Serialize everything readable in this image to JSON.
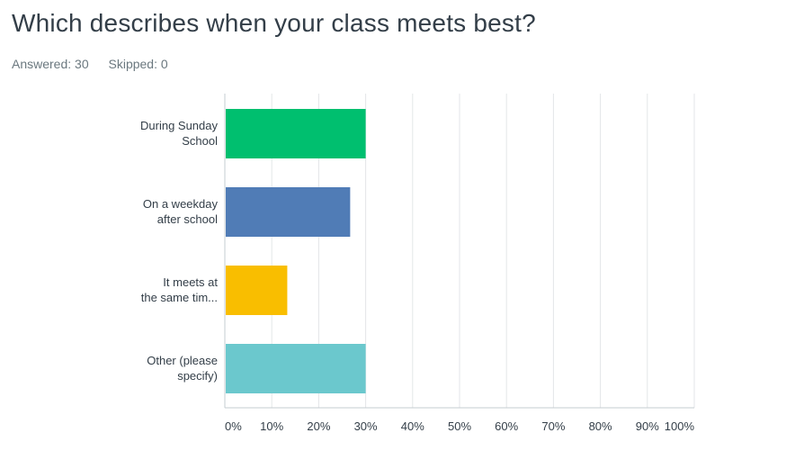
{
  "question": {
    "title": "Which describes when your class meets best?",
    "answered": "Answered: 30",
    "skipped": "Skipped: 0"
  },
  "chart_data": {
    "type": "bar",
    "orientation": "horizontal",
    "categories": [
      [
        "During Sunday",
        "School"
      ],
      [
        "On a weekday",
        "after school"
      ],
      [
        "It meets at",
        "the same tim..."
      ],
      [
        "Other (please",
        "specify)"
      ]
    ],
    "values": [
      30,
      26.7,
      13.3,
      30
    ],
    "colors": [
      "#00bf6f",
      "#507cb6",
      "#f9be00",
      "#6bc8cd"
    ],
    "xlim": [
      0,
      100
    ],
    "xticks": [
      "0%",
      "10%",
      "20%",
      "30%",
      "40%",
      "50%",
      "60%",
      "70%",
      "80%",
      "90%",
      "100%"
    ],
    "grid": true,
    "legend": "none"
  }
}
